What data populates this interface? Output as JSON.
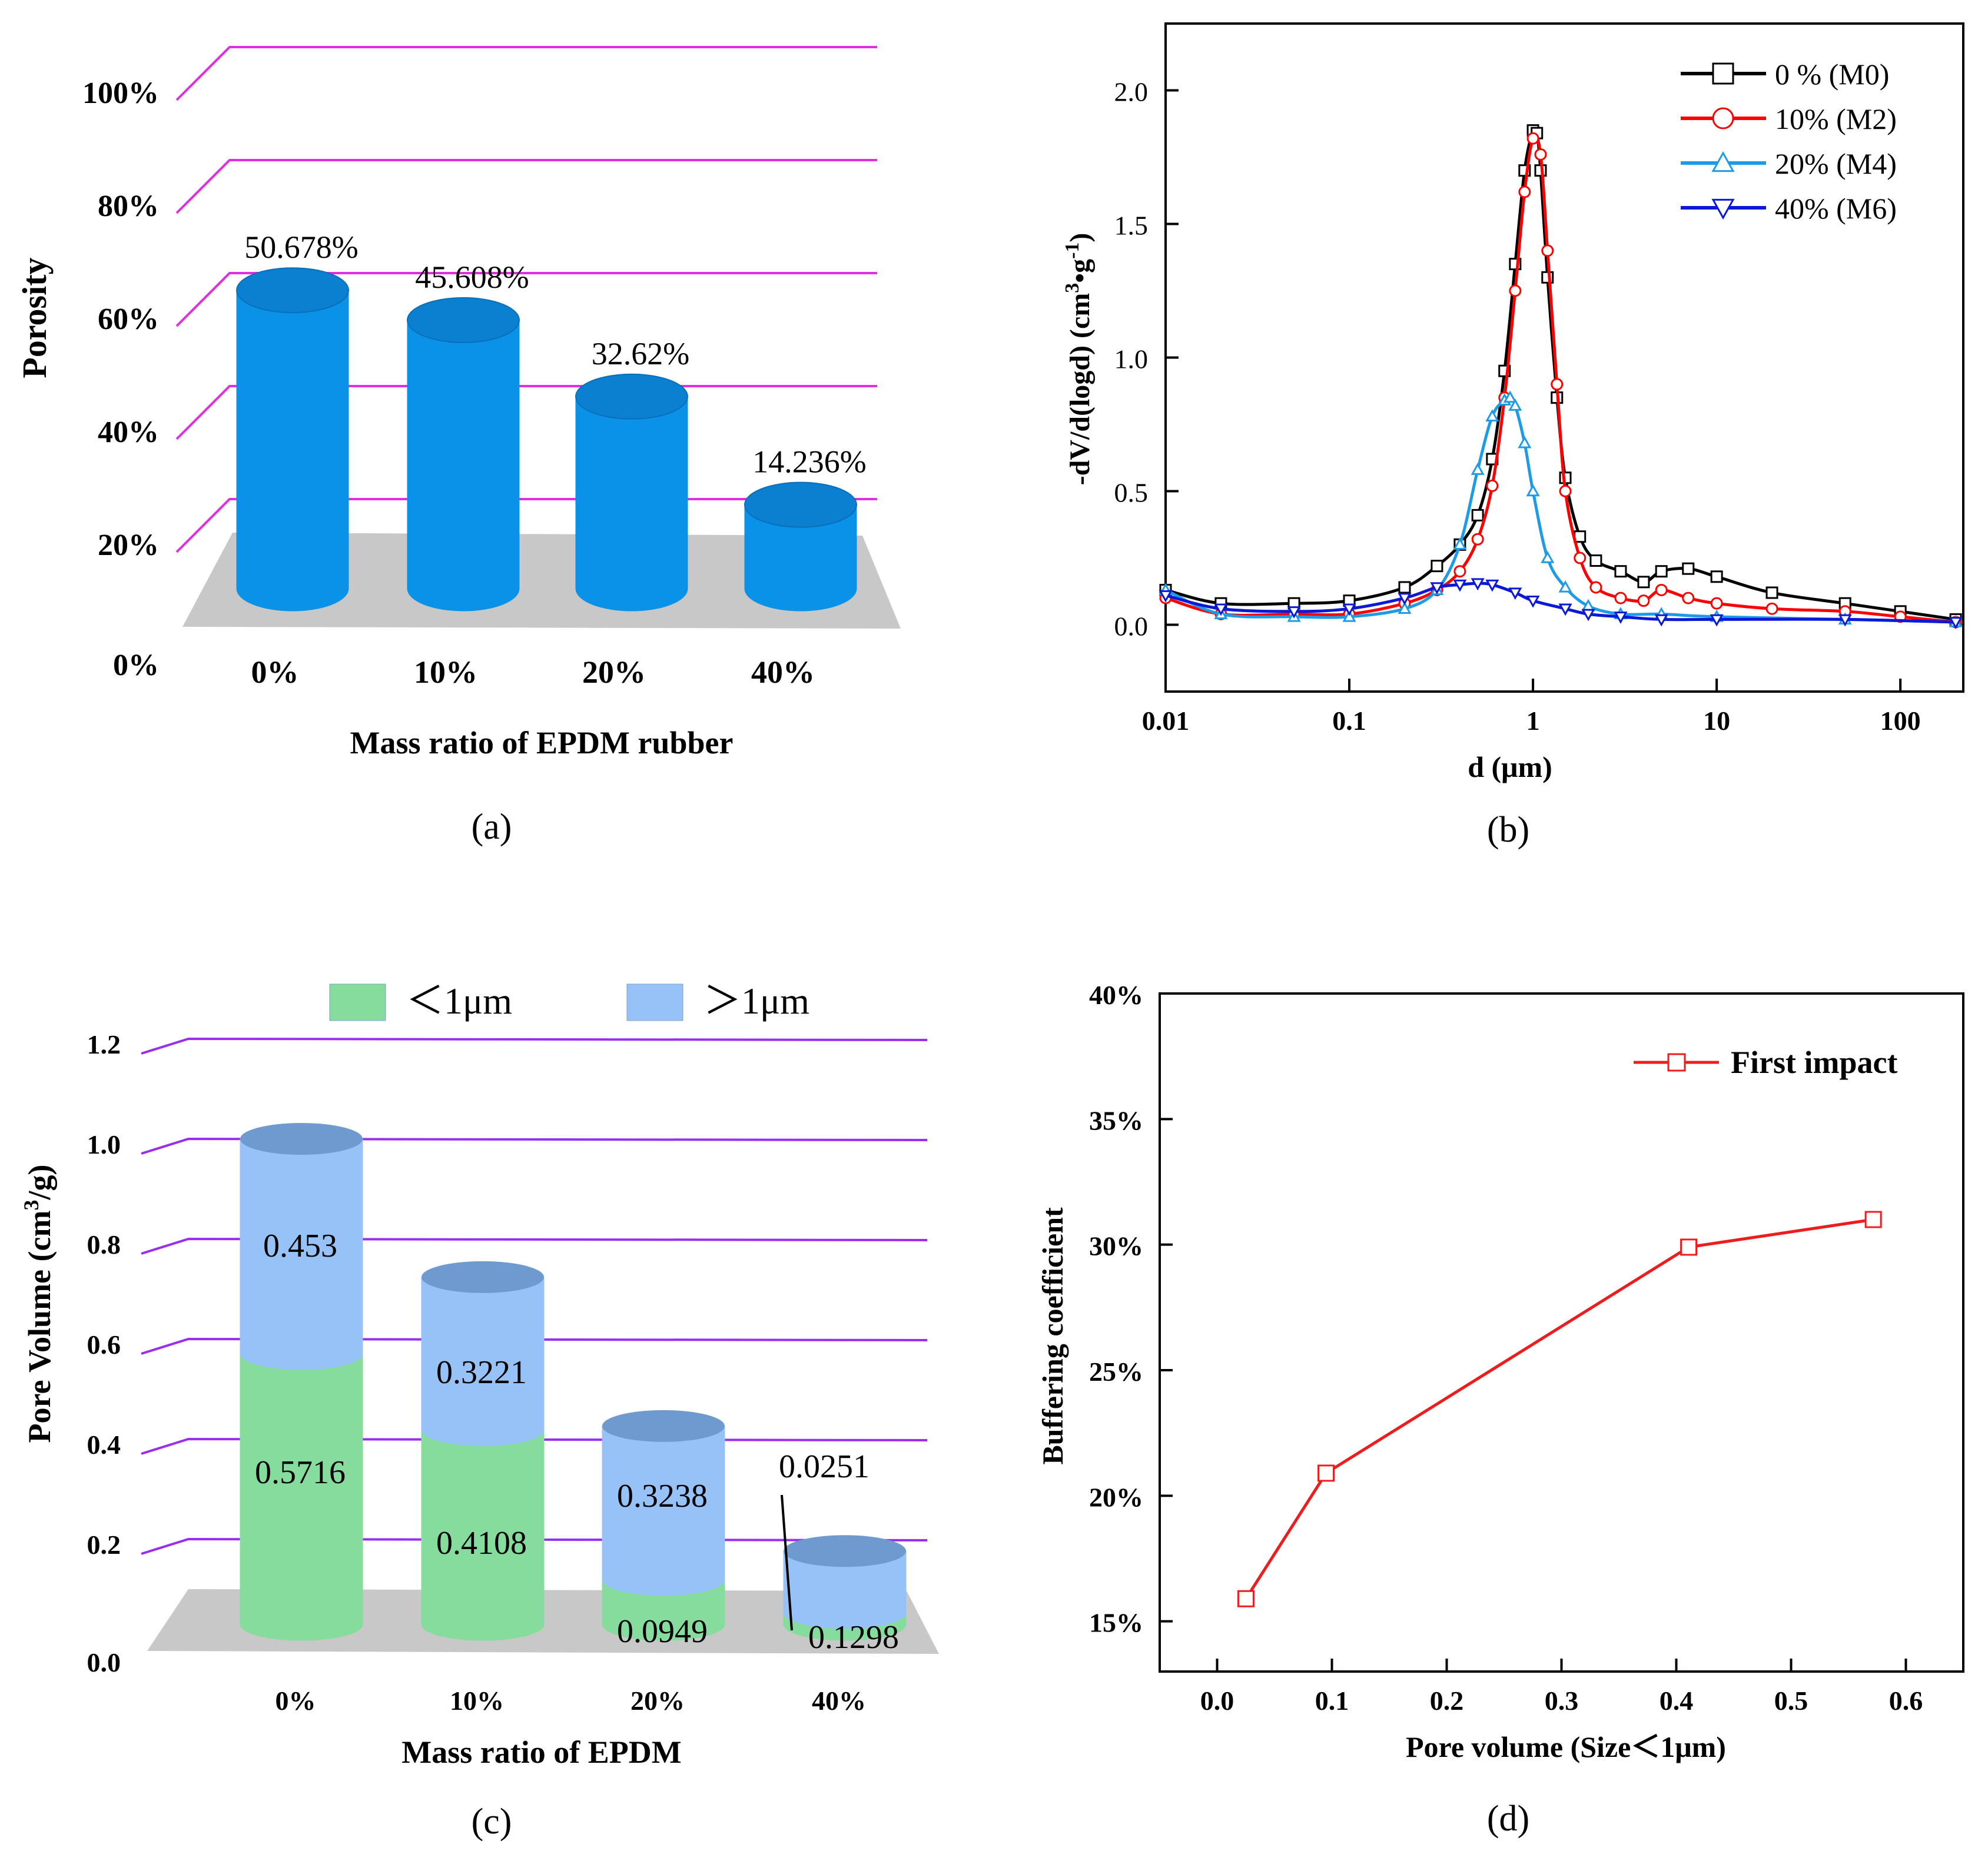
{
  "chart_data": [
    {
      "panel": "(a)",
      "type": "bar",
      "title": "",
      "xlabel": "Mass ratio of EPDM rubber",
      "ylabel": "Porosity",
      "categories": [
        "0%",
        "10%",
        "20%",
        "40%"
      ],
      "values": [
        50.678,
        45.608,
        32.62,
        14.236
      ],
      "data_labels": [
        "50.678%",
        "45.608%",
        "32.62%",
        "14.236%"
      ],
      "ylim": [
        0,
        100
      ],
      "yticks": [
        0,
        20,
        40,
        60,
        80,
        100
      ],
      "ytick_labels": [
        "0%",
        "20%",
        "40%",
        "60%",
        "80%",
        "100%"
      ],
      "colors": {
        "bar": "#0a92e8",
        "bar_top": "#0b7fd0",
        "grid": "#e02ee0",
        "floor": "#c8c8c8"
      }
    },
    {
      "panel": "(b)",
      "type": "line",
      "title": "",
      "xlabel": "d (μm)",
      "ylabel": "-dV/d(logd) (cm3•g-1)",
      "ylabel_parts": {
        "main": "-dV/d(logd) (cm",
        "sup1": "3",
        "dot": "•",
        "g": "g",
        "sup2": "-1",
        "close": ")"
      },
      "xscale": "log",
      "xlim": [
        0.01,
        220
      ],
      "ylim": [
        -0.25,
        2.25
      ],
      "xticks": [
        0.01,
        0.1,
        1,
        10,
        100
      ],
      "xtick_labels": [
        "0.01",
        "0.1",
        "1",
        "10",
        "100"
      ],
      "yticks": [
        0.0,
        0.5,
        1.0,
        1.5,
        2.0
      ],
      "ytick_labels": [
        "0.0",
        "0.5",
        "1.0",
        "1.5",
        "2.0"
      ],
      "legend_position": "top-right",
      "series": [
        {
          "name": "0 % (M0)",
          "color": "#000000",
          "marker": "square",
          "x": [
            0.01,
            0.02,
            0.05,
            0.1,
            0.2,
            0.3,
            0.4,
            0.5,
            0.6,
            0.7,
            0.8,
            0.9,
            1.0,
            1.05,
            1.1,
            1.2,
            1.35,
            1.5,
            1.8,
            2.2,
            3,
            4,
            5,
            7,
            10,
            20,
            50,
            100,
            200
          ],
          "y": [
            0.13,
            0.08,
            0.08,
            0.09,
            0.14,
            0.22,
            0.3,
            0.41,
            0.62,
            0.95,
            1.35,
            1.7,
            1.85,
            1.84,
            1.7,
            1.3,
            0.85,
            0.55,
            0.33,
            0.24,
            0.2,
            0.16,
            0.2,
            0.21,
            0.18,
            0.12,
            0.08,
            0.05,
            0.02
          ]
        },
        {
          "name": "10% (M2)",
          "color": "#ff0000",
          "marker": "circle",
          "x": [
            0.01,
            0.02,
            0.05,
            0.1,
            0.2,
            0.3,
            0.4,
            0.5,
            0.6,
            0.7,
            0.8,
            0.9,
            1.0,
            1.1,
            1.2,
            1.35,
            1.5,
            1.8,
            2.2,
            3,
            4,
            5,
            7,
            10,
            20,
            50,
            100,
            200
          ],
          "y": [
            0.1,
            0.04,
            0.04,
            0.04,
            0.08,
            0.13,
            0.2,
            0.32,
            0.52,
            0.85,
            1.25,
            1.62,
            1.82,
            1.76,
            1.4,
            0.9,
            0.5,
            0.25,
            0.14,
            0.1,
            0.09,
            0.13,
            0.1,
            0.08,
            0.06,
            0.05,
            0.03,
            0.01
          ]
        },
        {
          "name": "20% (M4)",
          "color": "#1e9be6",
          "marker": "triangle-up",
          "x": [
            0.01,
            0.02,
            0.05,
            0.1,
            0.2,
            0.3,
            0.4,
            0.5,
            0.6,
            0.7,
            0.75,
            0.8,
            0.9,
            1.0,
            1.2,
            1.5,
            2,
            3,
            5,
            10,
            50,
            200
          ],
          "y": [
            0.13,
            0.04,
            0.03,
            0.03,
            0.06,
            0.13,
            0.3,
            0.58,
            0.78,
            0.84,
            0.85,
            0.82,
            0.68,
            0.5,
            0.25,
            0.14,
            0.07,
            0.04,
            0.04,
            0.03,
            0.02,
            0.01
          ]
        },
        {
          "name": "40% (M6)",
          "color": "#0a18d8",
          "marker": "triangle-down",
          "x": [
            0.01,
            0.02,
            0.05,
            0.1,
            0.2,
            0.3,
            0.4,
            0.5,
            0.6,
            0.8,
            1.0,
            1.5,
            2,
            3,
            5,
            10,
            50,
            200
          ],
          "y": [
            0.11,
            0.06,
            0.05,
            0.06,
            0.1,
            0.14,
            0.15,
            0.155,
            0.15,
            0.12,
            0.09,
            0.06,
            0.04,
            0.03,
            0.02,
            0.02,
            0.02,
            0.01
          ]
        }
      ]
    },
    {
      "panel": "(c)",
      "type": "bar",
      "stacked": true,
      "title": "",
      "xlabel": "Mass ratio of EPDM",
      "ylabel": "Pore Volume (cm3/g)",
      "ylabel_parts": {
        "main": "Pore Volume (cm",
        "sup": "3",
        "close": "/g)"
      },
      "categories": [
        "0%",
        "10%",
        "20%",
        "40%"
      ],
      "ylim": [
        0,
        1.2
      ],
      "yticks": [
        0.0,
        0.2,
        0.4,
        0.6,
        0.8,
        1.0,
        1.2
      ],
      "ytick_labels": [
        "0.0",
        "0.2",
        "0.4",
        "0.6",
        "0.8",
        "1.0",
        "1.2"
      ],
      "legend_position": "top",
      "series": [
        {
          "name": "<1μm",
          "legend_label": "＜1μm",
          "color": "#86dc9c",
          "values": [
            0.5716,
            0.4108,
            0.0949,
            0.0251
          ],
          "data_labels": [
            "0.5716",
            "0.4108",
            "0.0949",
            "0.0251"
          ]
        },
        {
          "name": ">1μm",
          "legend_label": "＞1μm",
          "color": "#96c2f8",
          "values": [
            0.453,
            0.3221,
            0.3238,
            0.1298
          ],
          "data_labels": [
            "0.453",
            "0.3221",
            "0.3238",
            "0.1298"
          ]
        }
      ],
      "colors": {
        "grid": "#9a2ef0",
        "floor": "#c8c8c8",
        "top": "#6e9ad0"
      }
    },
    {
      "panel": "(d)",
      "type": "line",
      "title": "",
      "xlabel": "Pore volume  (Size<1μm)",
      "xlabel_display": "Pore volume  (Size＜1μm)",
      "ylabel": "Buffering coefficient",
      "xlim": [
        -0.05,
        0.65
      ],
      "ylim": [
        13,
        40
      ],
      "xticks": [
        0.0,
        0.1,
        0.2,
        0.3,
        0.4,
        0.5,
        0.6
      ],
      "xtick_labels": [
        "0.0",
        "0.1",
        "0.2",
        "0.3",
        "0.4",
        "0.5",
        "0.6"
      ],
      "yticks": [
        15,
        20,
        25,
        30,
        35,
        40
      ],
      "ytick_labels": [
        "15%",
        "20%",
        "25%",
        "30%",
        "35%",
        "40%"
      ],
      "legend_position": "top-right",
      "series": [
        {
          "name": "First impact",
          "color": "#ee1c1c",
          "marker": "square",
          "x": [
            0.0251,
            0.0949,
            0.4108,
            0.5716
          ],
          "y": [
            15.9,
            20.9,
            29.9,
            31.0
          ]
        }
      ]
    }
  ],
  "panel_labels": {
    "a": "(a)",
    "b": "(b)",
    "c": "(c)",
    "d": "(d)"
  }
}
